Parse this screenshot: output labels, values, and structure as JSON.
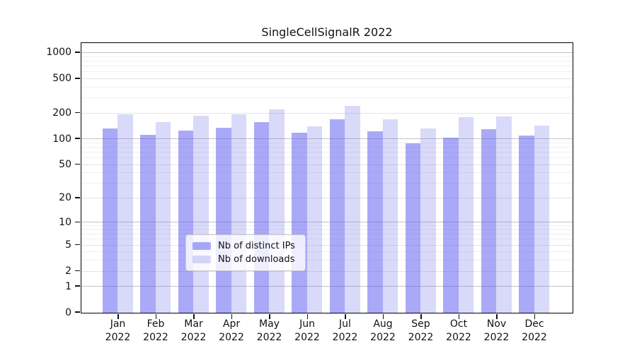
{
  "chart_data": {
    "type": "bar",
    "title": "SingleCellSignalR 2022",
    "categories": [
      "Jan",
      "Feb",
      "Mar",
      "Apr",
      "May",
      "Jun",
      "Jul",
      "Aug",
      "Sep",
      "Oct",
      "Nov",
      "Dec"
    ],
    "year_label": "2022",
    "series": [
      {
        "name": "Nb of distinct IPs",
        "color": "rgba(90,90,240,0.52)",
        "values": [
          133,
          113,
          125,
          136,
          158,
          120,
          171,
          124,
          90,
          105,
          130,
          110
        ]
      },
      {
        "name": "Nb of downloads",
        "color": "rgba(120,120,235,0.28)",
        "values": [
          196,
          158,
          186,
          196,
          224,
          140,
          243,
          170,
          134,
          180,
          185,
          145
        ]
      }
    ],
    "xlabel": "",
    "ylabel": "",
    "y_axis": {
      "scale": "log10(v+1)",
      "tick_values": [
        1000,
        500,
        200,
        100,
        50,
        20,
        10,
        5,
        2,
        1,
        0
      ],
      "minor_gridlines": [
        3,
        4,
        6,
        7,
        8,
        9,
        30,
        40,
        60,
        70,
        80,
        90,
        300,
        400,
        600,
        700,
        800,
        900
      ],
      "decade_gridlines": [
        1,
        10,
        100,
        1000
      ],
      "ylim": [
        0,
        1275
      ]
    },
    "grid": true,
    "legend": {
      "position": "lower center",
      "entries": [
        "Nb of distinct IPs",
        "Nb of downloads"
      ]
    }
  },
  "colors": {
    "bar_distinct_ips": "rgba(90,90,240,0.52)",
    "bar_downloads": "rgba(120,120,235,0.28)",
    "grid_minor": "#efefef",
    "grid_labeled": "#e3e3e3",
    "grid_decade": "#c2c2c2",
    "spine": "#000000",
    "text": "#111111"
  }
}
